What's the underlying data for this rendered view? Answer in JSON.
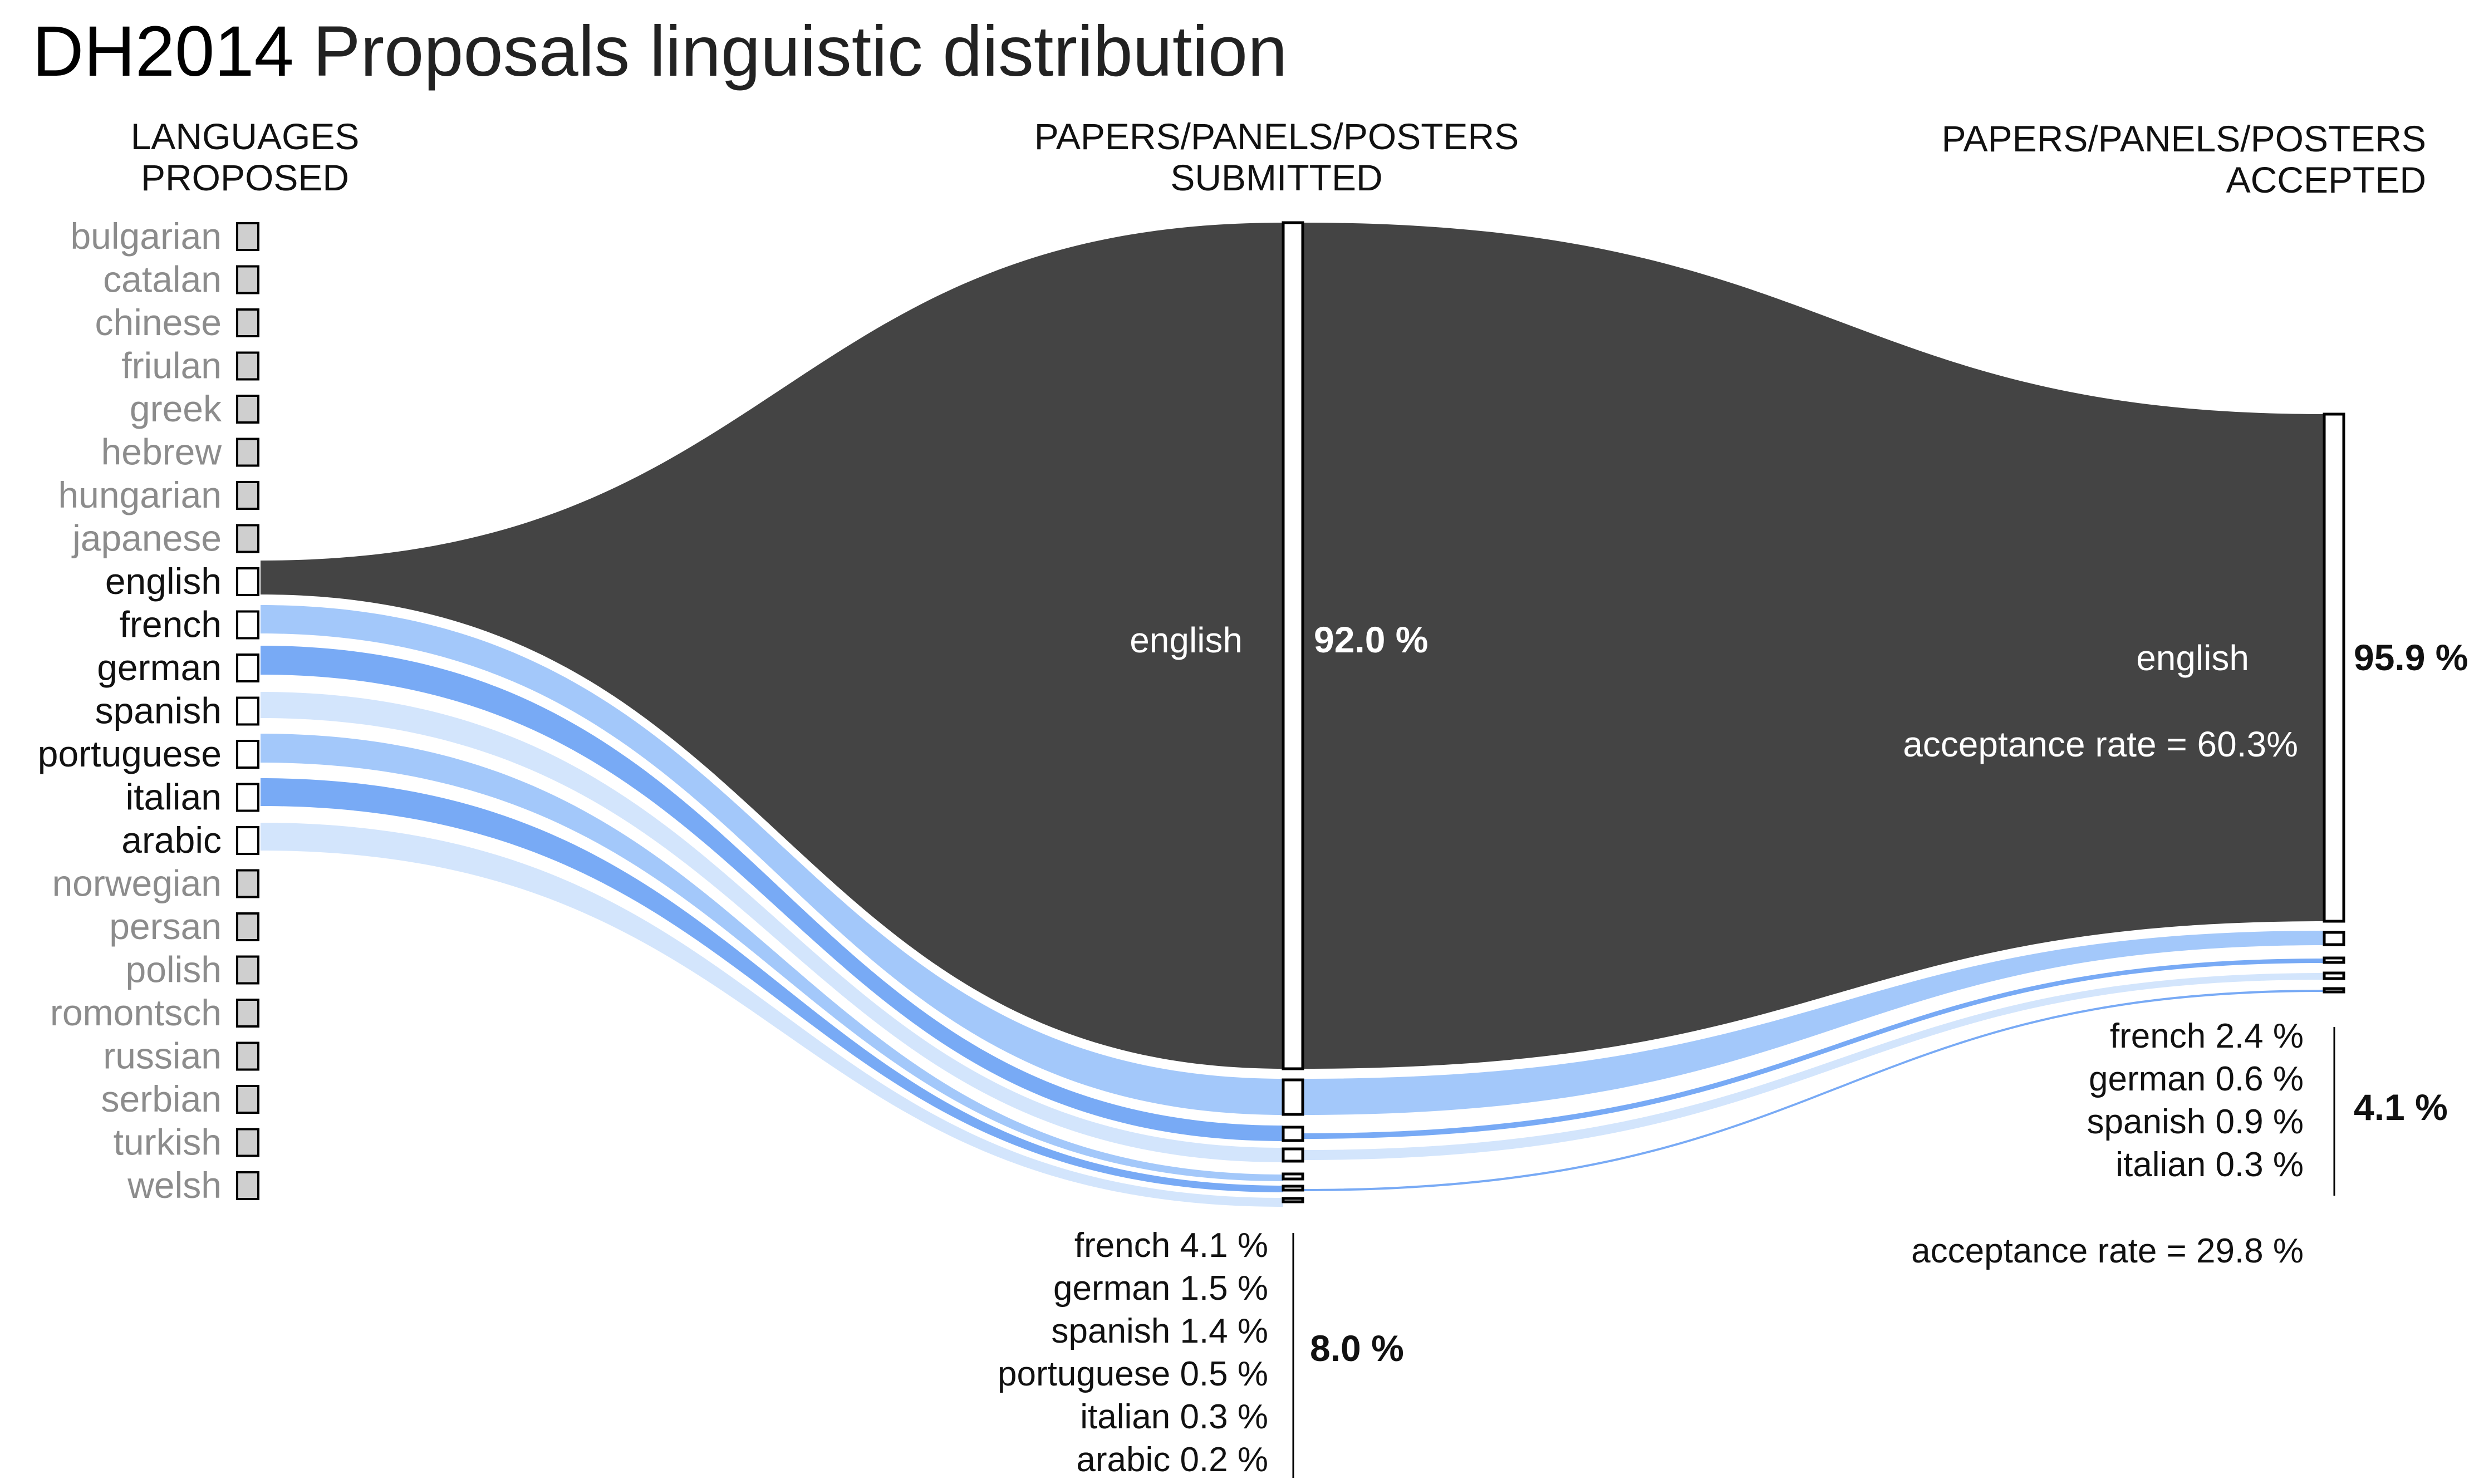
{
  "title": {
    "bold": "DH2014",
    "rest": "Proposals linguistic distribution"
  },
  "columns": {
    "languages": [
      "LANGUAGES",
      "PROPOSED"
    ],
    "submitted": [
      "PAPERS/PANELS/POSTERS",
      "SUBMITTED"
    ],
    "accepted": [
      "PAPERS/PANELS/POSTERS",
      "ACCEPTED"
    ]
  },
  "languages": [
    {
      "name": "bulgarian",
      "active": false
    },
    {
      "name": "catalan",
      "active": false
    },
    {
      "name": "chinese",
      "active": false
    },
    {
      "name": "friulan",
      "active": false
    },
    {
      "name": "greek",
      "active": false
    },
    {
      "name": "hebrew",
      "active": false
    },
    {
      "name": "hungarian",
      "active": false
    },
    {
      "name": "japanese",
      "active": false
    },
    {
      "name": "english",
      "active": true
    },
    {
      "name": "french",
      "active": true
    },
    {
      "name": "german",
      "active": true
    },
    {
      "name": "spanish",
      "active": true
    },
    {
      "name": "portuguese",
      "active": true
    },
    {
      "name": "italian",
      "active": true
    },
    {
      "name": "arabic",
      "active": true
    },
    {
      "name": "norwegian",
      "active": false
    },
    {
      "name": "persan",
      "active": false
    },
    {
      "name": "polish",
      "active": false
    },
    {
      "name": "romontsch",
      "active": false
    },
    {
      "name": "russian",
      "active": false
    },
    {
      "name": "serbian",
      "active": false
    },
    {
      "name": "turkish",
      "active": false
    },
    {
      "name": "welsh",
      "active": false
    }
  ],
  "colors": {
    "english_flow": "#444444",
    "light_blue": "#a3c8fa",
    "mid_blue": "#78aaf5",
    "pale_blue": "#d3e5fc",
    "inactive_box": "#cfcfcf"
  },
  "submitted": {
    "english": {
      "label": "english",
      "pct_text": "92.0 %",
      "value": 92.0
    },
    "others_total": "8.0 %",
    "breakdown": [
      {
        "text": "french 4.1 %",
        "value": 4.1
      },
      {
        "text": "german 1.5 %",
        "value": 1.5
      },
      {
        "text": "spanish 1.4 %",
        "value": 1.4
      },
      {
        "text": "portuguese 0.5 %",
        "value": 0.5
      },
      {
        "text": "italian 0.3 %",
        "value": 0.3
      },
      {
        "text": "arabic 0.2 %",
        "value": 0.2
      }
    ]
  },
  "accepted": {
    "english": {
      "label": "english",
      "pct_text": "95.9 %",
      "value": 95.9,
      "acceptance": "acceptance rate = 60.3%"
    },
    "others_total": "4.1 %",
    "breakdown": [
      {
        "text": "french 2.4 %",
        "value": 2.4
      },
      {
        "text": "german 0.6 %",
        "value": 0.6
      },
      {
        "text": "spanish 0.9 %",
        "value": 0.9
      },
      {
        "text": "italian 0.3 %",
        "value": 0.3
      }
    ],
    "others_acceptance": "acceptance rate = 29.8 %"
  }
}
